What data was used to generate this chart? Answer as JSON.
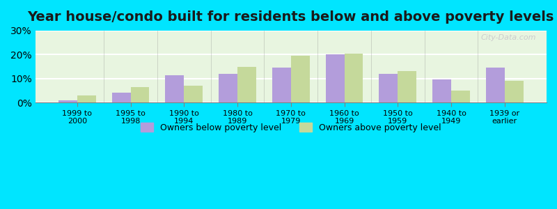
{
  "title": "Year house/condo built for residents below and above poverty levels",
  "categories": [
    "1999 to\n2000",
    "1995 to\n1998",
    "1990 to\n1994",
    "1980 to\n1989",
    "1970 to\n1979",
    "1960 to\n1969",
    "1950 to\n1959",
    "1940 to\n1949",
    "1939 or\nearlier"
  ],
  "below_poverty": [
    1.0,
    4.0,
    11.5,
    12.0,
    14.5,
    20.0,
    12.0,
    9.5,
    14.5
  ],
  "above_poverty": [
    2.8,
    6.5,
    7.0,
    15.0,
    19.5,
    20.5,
    13.0,
    5.0,
    9.0
  ],
  "below_color": "#b39ddb",
  "above_color": "#c5d99b",
  "background_top": "#e8f5e9",
  "background_bottom": "#f1f8e9",
  "plot_bg_top": "#d4edda",
  "plot_bg_bottom": "#f9fbe7",
  "ylim": [
    0,
    30
  ],
  "yticks": [
    0,
    10,
    20,
    30
  ],
  "ylabel_format": "%",
  "legend_below": "Owners below poverty level",
  "legend_above": "Owners above poverty level",
  "grid_color": "#ffffff",
  "outer_bg_color": "#00e5ff",
  "title_fontsize": 14,
  "tick_fontsize": 8,
  "legend_fontsize": 9
}
